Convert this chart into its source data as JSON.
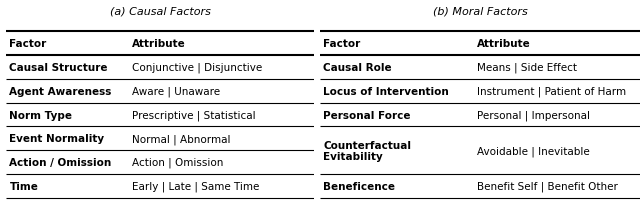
{
  "title_a": "(a) Causal Factors",
  "title_b": "(b) Moral Factors",
  "causal_headers": [
    "Factor",
    "Attribute"
  ],
  "causal_rows": [
    [
      "Causal Structure",
      "Conjunctive | Disjunctive"
    ],
    [
      "Agent Awareness",
      "Aware | Unaware"
    ],
    [
      "Norm Type",
      "Prescriptive | Statistical"
    ],
    [
      "Event Normality",
      "Normal | Abnormal"
    ],
    [
      "Action / Omission",
      "Action | Omission"
    ],
    [
      "Time",
      "Early | Late | Same Time"
    ]
  ],
  "moral_headers": [
    "Factor",
    "Attribute"
  ],
  "moral_rows": [
    [
      "Causal Role",
      "Means | Side Effect"
    ],
    [
      "Locus of Intervention",
      "Instrument | Patient of Harm"
    ],
    [
      "Personal Force",
      "Personal | Impersonal"
    ],
    [
      "Counterfactual\nEvitability",
      "Avoidable | Inevitable"
    ],
    [
      "Beneficence",
      "Benefit Self | Benefit Other"
    ]
  ],
  "background_color": "#ffffff",
  "cell_fontsize": 7.5,
  "title_fontsize": 8.0,
  "line_color": "#000000",
  "text_color": "#000000",
  "causal_col_split": 0.4,
  "moral_col_split": 0.48
}
